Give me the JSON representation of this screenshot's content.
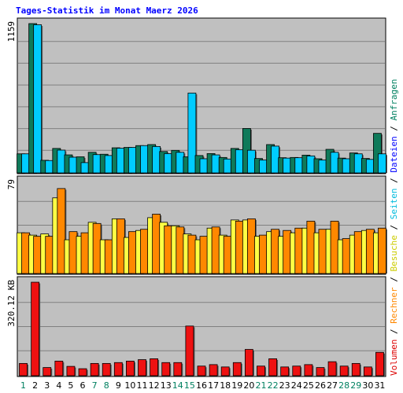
{
  "chart_data": {
    "type": "bar",
    "title": "Tages-Statistik im Monat Maerz 2026",
    "colors": {
      "background": "#ffffff",
      "panel": "#c0c0c0",
      "title": "#0000ff",
      "anfragen": "#0f7a5a",
      "dateien": "#00ccff",
      "besuche": "#ffff44",
      "rechner": "#ff8800",
      "volumen": "#ee1111",
      "day_weekday": "#000000",
      "day_weekend": "#008060"
    },
    "categories": [
      "1",
      "2",
      "3",
      "4",
      "5",
      "6",
      "7",
      "8",
      "9",
      "10",
      "11",
      "12",
      "13",
      "14",
      "15",
      "16",
      "17",
      "18",
      "19",
      "20",
      "21",
      "22",
      "23",
      "24",
      "25",
      "26",
      "27",
      "28",
      "29",
      "30",
      "31"
    ],
    "weekend_days": [
      1,
      7,
      8,
      14,
      15,
      21,
      22,
      28,
      29
    ],
    "right_labels": [
      {
        "text": "Volumen",
        "color": "#dd0000"
      },
      {
        "text": " / ",
        "color": "#000000"
      },
      {
        "text": "Rechner",
        "color": "#ff8800"
      },
      {
        "text": " / ",
        "color": "#000000"
      },
      {
        "text": "Besuche",
        "color": "#cccc00"
      },
      {
        "text": " / ",
        "color": "#000000"
      },
      {
        "text": "Seiten",
        "color": "#00bbdd"
      },
      {
        "text": " / ",
        "color": "#000000"
      },
      {
        "text": "Dateien",
        "color": "#0000ff"
      },
      {
        "text": " / ",
        "color": "#000000"
      },
      {
        "text": "Anfragen",
        "color": "#008060"
      }
    ],
    "panels": [
      {
        "axis_label": "1159",
        "ymax": 1159,
        "series": [
          {
            "key": "anfragen",
            "values": [
              148,
              1159,
              98,
              190,
              140,
              125,
              160,
              145,
              195,
              198,
              212,
              220,
              166,
              175,
              125,
              135,
              150,
              120,
              190,
              345,
              112,
              220,
              118,
              120,
              138,
              110,
              183,
              115,
              155,
              112,
              307
            ]
          },
          {
            "key": "dateien",
            "values": [
              148,
              1150,
              96,
              177,
              122,
              80,
              142,
              135,
              192,
              198,
              212,
              205,
              150,
              160,
              620,
              110,
              140,
              108,
              180,
              176,
              100,
              208,
              115,
              118,
              132,
              100,
              160,
              110,
              148,
              105,
              148
            ]
          }
        ]
      },
      {
        "axis_label": "79",
        "ymax": 79,
        "series": [
          {
            "key": "besuche",
            "values": [
              35,
              33,
              34,
              65,
              29,
              32,
              44,
              29,
              47,
              31,
              37,
              48,
              44,
              41,
              34,
              29,
              39,
              33,
              46,
              46,
              32,
              36,
              32,
              35,
              39,
              35,
              38,
              29,
              33,
              37,
              35
            ]
          },
          {
            "key": "rechner",
            "values": [
              35,
              32,
              32,
              73,
              36,
              35,
              43,
              29,
              47,
              36,
              38,
              51,
              41,
              40,
              33,
              32,
              40,
              32,
              45,
              47,
              33,
              38,
              37,
              39,
              45,
              38,
              45,
              30,
              36,
              38,
              39
            ]
          }
        ]
      },
      {
        "axis_label": "320.12 KB",
        "ymax": 320.12,
        "series": [
          {
            "key": "volumen",
            "values": [
              42,
              320,
              28,
              50,
              32,
              24,
              42,
              42,
              45,
              50,
              55,
              58,
              45,
              45,
              170,
              33,
              38,
              30,
              45,
              90,
              33,
              58,
              30,
              33,
              38,
              28,
              48,
              33,
              42,
              30,
              80
            ]
          }
        ]
      }
    ]
  }
}
